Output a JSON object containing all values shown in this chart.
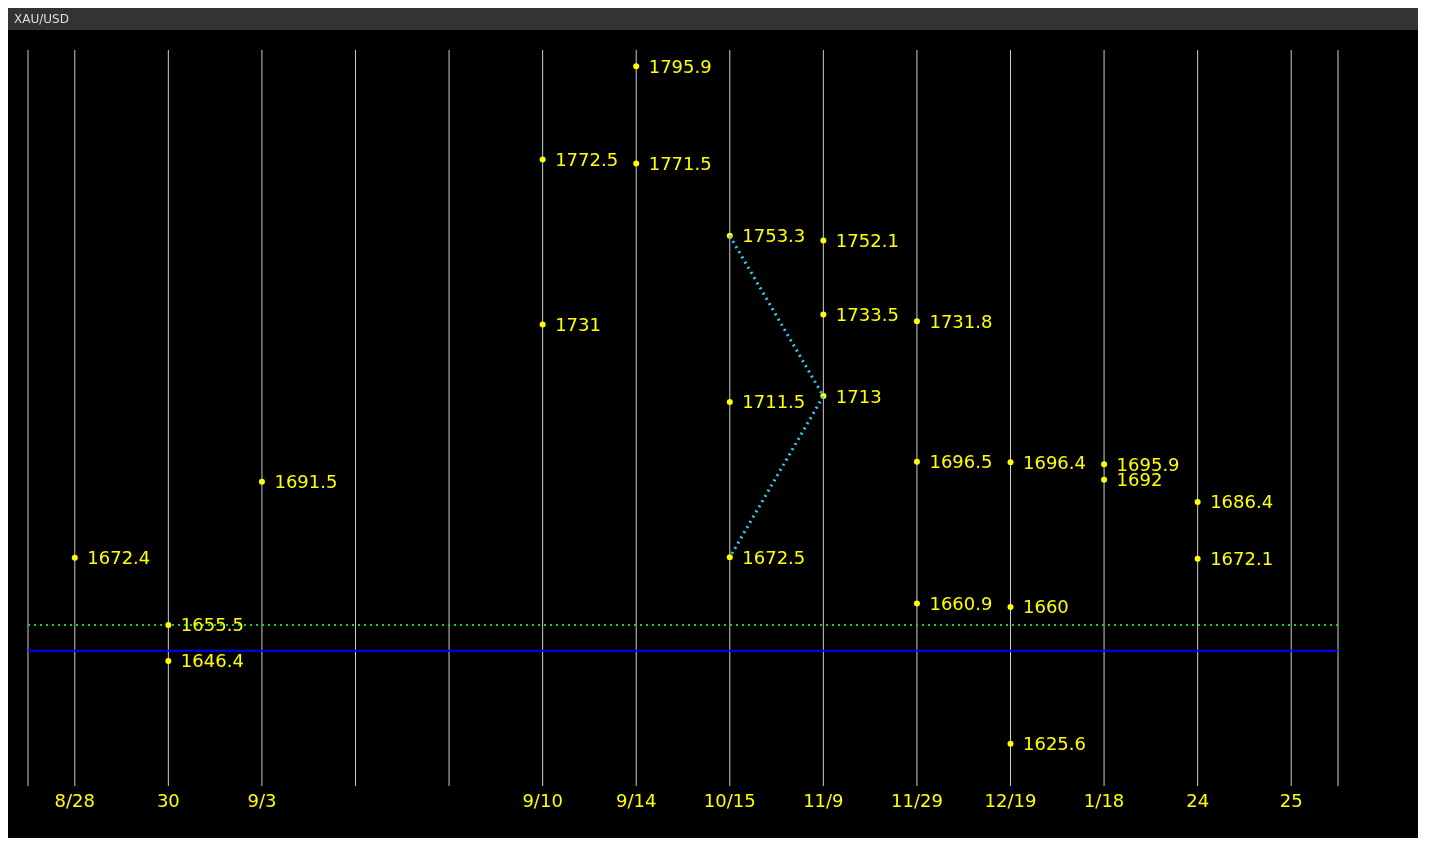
{
  "chart_data": {
    "type": "scatter",
    "title": "XAU/USD",
    "categories": [
      "8/28",
      "30",
      "9/3",
      null,
      null,
      "9/10",
      "9/14",
      "10/15",
      "11/9",
      "11/29",
      "12/19",
      "1/18",
      "24",
      "25"
    ],
    "series": [
      {
        "color": "#ffff00",
        "x": [
          "8/28",
          "30",
          "30",
          "9/3",
          "9/10",
          "9/10",
          "9/14",
          "9/14",
          "10/15",
          "10/15",
          "10/15",
          "11/9",
          "11/9",
          "11/9",
          "11/29",
          "11/29",
          "11/29",
          "12/19",
          "12/19",
          "12/19",
          "1/18",
          "1/18",
          "24",
          "24"
        ],
        "values": [
          1672.4,
          1646.4,
          1655.5,
          1691.5,
          1772.5,
          1731,
          1795.9,
          1771.5,
          1753.3,
          1711.5,
          1672.5,
          1752.1,
          1733.5,
          1713,
          1731.8,
          1696.5,
          1660.9,
          1696.4,
          1660,
          1625.6,
          1695.9,
          1692,
          1686.4,
          1672.1
        ]
      },
      {
        "type": "line",
        "color": "#33ccee",
        "line_style": "dotted",
        "marker": "none",
        "x": [
          "10/15",
          "11/9",
          "10/15"
        ],
        "values": [
          1753.3,
          1713,
          1672.5
        ],
        "value_labels": [
          null,
          null,
          null
        ]
      }
    ],
    "data_labels": true,
    "marker": "circle",
    "ylim": [
      1615,
      1800
    ],
    "tick_labels": "x",
    "grid": "x",
    "ref_lines": [
      {
        "axis": "y",
        "value": 1655.5,
        "color": "#22cc22",
        "line_style": "dotted"
      },
      {
        "axis": "y",
        "value": 1649,
        "color": "#0000ff",
        "line_style": "solid"
      }
    ]
  }
}
